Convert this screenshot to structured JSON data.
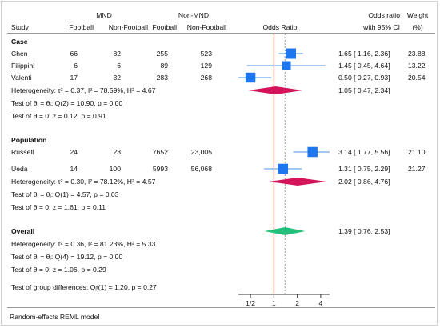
{
  "header": {
    "group_mnd": "MND",
    "group_nonmnd": "Non-MND",
    "col_study": "Study",
    "col_mnd_football": "Football",
    "col_mnd_nonfootball": "Non-Football",
    "col_nonmnd_football": "Football",
    "col_nonmnd_nonfootball": "Non-Football",
    "col_plot": "Odds Ratio",
    "col_or_line1": "Odds ratio",
    "col_or_line2": "with 95% CI",
    "col_weight_line1": "Weight",
    "col_weight_line2": "(%)"
  },
  "footer_note": "Random-effects REML model",
  "colors": {
    "square": "#1f77f0",
    "subgroup_diamond": "#d4145a",
    "overall_diamond": "#22c07a",
    "null_line": "#c0392b",
    "ci_line": "#4a90e2",
    "ref_dash": "#999999"
  },
  "chart_data": {
    "type": "forest",
    "xscale": "log2",
    "xlim": [
      0.35,
      5.2
    ],
    "ticks": [
      0.5,
      1,
      2,
      4
    ],
    "tick_labels": [
      "1/2",
      "1",
      "2",
      "4"
    ],
    "overall_ref": 1.39,
    "groups": [
      {
        "name": "Case",
        "studies": [
          {
            "study": "Chen",
            "mnd_football": "66",
            "mnd_nonfootball": "82",
            "nonmnd_football": "255",
            "nonmnd_nonfootball": "523",
            "or": 1.65,
            "lo": 1.16,
            "hi": 2.36,
            "ci_text": "1.65 [ 1.16, 2.36]",
            "weight": 23.88,
            "weight_text": "23.88"
          },
          {
            "study": "Filippini",
            "mnd_football": "6",
            "mnd_nonfootball": "6",
            "nonmnd_football": "89",
            "nonmnd_nonfootball": "129",
            "or": 1.45,
            "lo": 0.45,
            "hi": 4.64,
            "ci_text": "1.45 [ 0.45, 4.64]",
            "weight": 13.22,
            "weight_text": "13.22"
          },
          {
            "study": "Valenti",
            "mnd_football": "17",
            "mnd_nonfootball": "32",
            "nonmnd_football": "283",
            "nonmnd_nonfootball": "268",
            "or": 0.5,
            "lo": 0.27,
            "hi": 0.93,
            "ci_text": "0.50 [ 0.27, 0.93]",
            "weight": 20.54,
            "weight_text": "20.54"
          }
        ],
        "summary": {
          "or": 1.05,
          "lo": 0.47,
          "hi": 2.34,
          "ci_text": "1.05 [ 0.47, 2.34]"
        },
        "heterogeneity": "Heterogeneity: τ² = 0.37, I² = 78.59%, H² = 4.67",
        "test_thetas": "Test of θᵢ = θⱼ: Q(2) = 10.90, p = 0.00",
        "test_zero": "Test of θ = 0: z = 0.12, p = 0.91"
      },
      {
        "name": "Population",
        "studies": [
          {
            "study": "Russell",
            "mnd_football": "24",
            "mnd_nonfootball": "23",
            "nonmnd_football": "7652",
            "nonmnd_nonfootball": "23,005",
            "or": 3.14,
            "lo": 1.77,
            "hi": 5.56,
            "ci_text": "3.14 [ 1.77, 5.56]",
            "weight": 21.1,
            "weight_text": "21.10"
          },
          {
            "study": "Ueda",
            "mnd_football": "14",
            "mnd_nonfootball": "100",
            "nonmnd_football": "5993",
            "nonmnd_nonfootball": "56,068",
            "or": 1.31,
            "lo": 0.75,
            "hi": 2.29,
            "ci_text": "1.31 [ 0.75, 2.29]",
            "weight": 21.27,
            "weight_text": "21.27"
          }
        ],
        "summary": {
          "or": 2.02,
          "lo": 0.86,
          "hi": 4.76,
          "ci_text": "2.02 [ 0.86, 4.76]"
        },
        "heterogeneity": "Heterogeneity: τ² = 0.30, I² = 78.12%, H² = 4.57",
        "test_thetas": "Test of θᵢ = θⱼ: Q(1) = 4.57, p = 0.03",
        "test_zero": "Test of θ = 0: z = 1.61, p = 0.11"
      }
    ],
    "overall": {
      "name": "Overall",
      "or": 1.39,
      "lo": 0.76,
      "hi": 2.53,
      "ci_text": "1.39 [ 0.76, 2.53]",
      "heterogeneity": "Heterogeneity: τ² = 0.36, I² = 81.23%, H² = 5.33",
      "test_thetas": "Test of θᵢ = θⱼ: Q(4) = 19.12, p = 0.00",
      "test_zero": "Test of θ = 0: z = 1.06, p = 0.29",
      "test_groups": "Test of group differences: Qᵦ(1) = 1.20, p = 0.27"
    }
  }
}
